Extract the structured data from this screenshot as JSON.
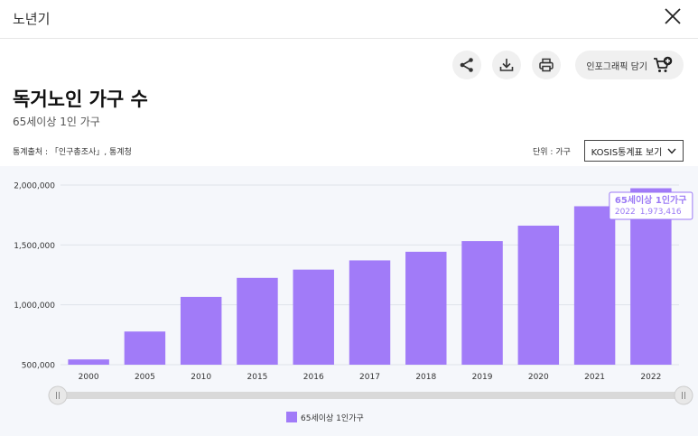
{
  "header": {
    "title": "노년기"
  },
  "toolbar": {
    "share_icon": "share-icon",
    "download_icon": "download-icon",
    "print_icon": "print-icon",
    "infographic_label": "인포그래픽 담기",
    "infographic_icon": "cart-plus-icon"
  },
  "main": {
    "title": "독거노인 가구 수",
    "subtitle": "65세이상 1인 가구",
    "source": "통계출처 : 「인구총조사」, 통계청",
    "unit": "단위 : 가구",
    "kosis_button": "KOSIS통계표 보기"
  },
  "colors": {
    "bar": "#a17bf8",
    "tooltip": "#9b7af5",
    "chart_bg": "#f5f7fb"
  },
  "tooltip": {
    "title": "65세이상 1인가구",
    "year": "2022",
    "value": "1,973,416"
  },
  "chart_data": {
    "type": "bar",
    "title": "독거노인 가구 수",
    "subtitle": "65세이상 1인 가구",
    "xlabel": "",
    "ylabel": "",
    "ylim": [
      500000,
      2000000
    ],
    "yticks": [
      500000,
      1000000,
      1500000,
      2000000
    ],
    "ytick_labels": [
      "500,000",
      "1,000,000",
      "1,500,000",
      "2,000,000"
    ],
    "grid": true,
    "categories": [
      "2000",
      "2005",
      "2010",
      "2015",
      "2016",
      "2017",
      "2018",
      "2019",
      "2020",
      "2021",
      "2022"
    ],
    "series": [
      {
        "name": "65세이상 1인가구",
        "values": [
          544000,
          777000,
          1066000,
          1225000,
          1294000,
          1371000,
          1443000,
          1532000,
          1661000,
          1823000,
          1973416
        ]
      }
    ],
    "legend_position": "bottom"
  }
}
